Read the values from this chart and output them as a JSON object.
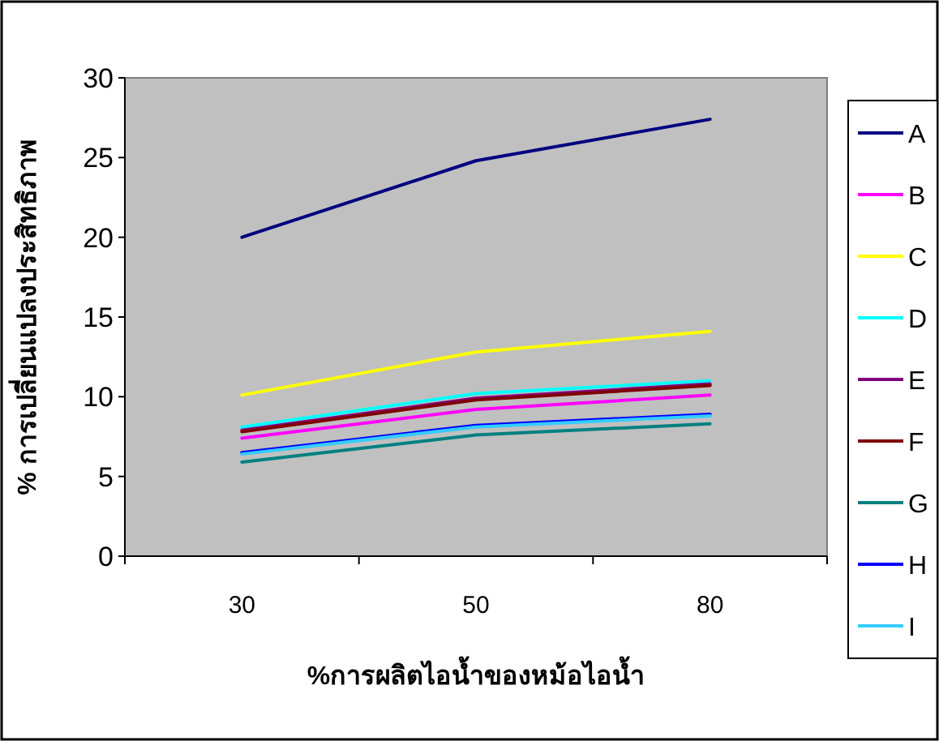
{
  "chart_data": {
    "type": "line",
    "xlabel": "%การผลิตไอน้ำของหม้อไอน้ำ",
    "ylabel": "% การเปลี่ยนแปลงประสิทธิภาพ",
    "categories": [
      "30",
      "50",
      "80"
    ],
    "series": [
      {
        "name": "A",
        "color": "#000080",
        "values": [
          20,
          24.8,
          27.4
        ]
      },
      {
        "name": "B",
        "color": "#ff00ff",
        "values": [
          7.4,
          9.2,
          10.1
        ]
      },
      {
        "name": "C",
        "color": "#ffff00",
        "values": [
          10.1,
          12.8,
          14.1
        ]
      },
      {
        "name": "D",
        "color": "#00ffff",
        "values": [
          8.1,
          10.2,
          11.0
        ]
      },
      {
        "name": "E",
        "color": "#800080",
        "values": [
          7.9,
          9.9,
          10.8
        ]
      },
      {
        "name": "F",
        "color": "#800000",
        "values": [
          7.8,
          9.8,
          10.7
        ]
      },
      {
        "name": "G",
        "color": "#008080",
        "values": [
          5.9,
          7.6,
          8.3
        ]
      },
      {
        "name": "H",
        "color": "#0000ff",
        "values": [
          6.5,
          8.2,
          8.9
        ]
      },
      {
        "name": "I",
        "color": "#33ccff",
        "values": [
          6.4,
          8.1,
          8.8
        ]
      }
    ],
    "ylim": [
      0,
      30
    ],
    "yticks": [
      0,
      5,
      10,
      15,
      20,
      25,
      30
    ],
    "grid": false,
    "legend": "right",
    "marker": "none",
    "line_style": "solid"
  }
}
